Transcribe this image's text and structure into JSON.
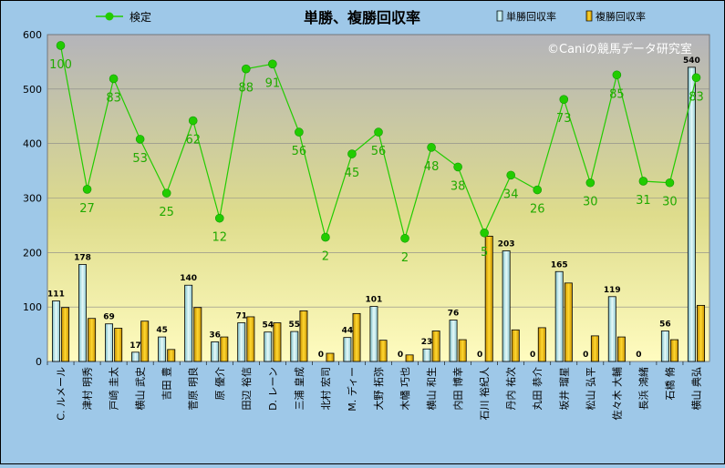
{
  "chart_data": {
    "type": "bar",
    "title": "単勝、複勝回収率",
    "watermark": "©Caniの競馬データ研究室",
    "ylim": [
      0,
      600
    ],
    "yticks": [
      0,
      100,
      200,
      300,
      400,
      500,
      600
    ],
    "grid": true,
    "legend_placement": "top",
    "categories": [
      "C. ルメール",
      "津村 明秀",
      "戸崎 圭太",
      "横山 武史",
      "吉田 豊",
      "菅原 明良",
      "原 優介",
      "田辺 裕信",
      "D. レーン",
      "三浦 皇成",
      "北村 宏司",
      "M. ディー",
      "大野 拓弥",
      "木幡 巧也",
      "横山 和生",
      "内田 博幸",
      "石川 裕紀人",
      "丹内 祐次",
      "丸田 恭介",
      "坂井 瑠星",
      "松山 弘平",
      "佐々木 大輔",
      "長浜 鴻緒",
      "石橋 脩",
      "横山 典弘"
    ],
    "series": [
      {
        "name": "単勝回収率",
        "type": "bar",
        "color": "#c8ecec",
        "values": [
          111,
          178,
          69,
          17,
          45,
          140,
          36,
          71,
          54,
          55,
          0,
          44,
          101,
          0,
          23,
          76,
          0,
          203,
          0,
          165,
          0,
          119,
          0,
          56,
          540
        ]
      },
      {
        "name": "複勝回収率",
        "type": "bar",
        "color": "#f0c000",
        "values": [
          99,
          79,
          61,
          74,
          22,
          99,
          45,
          82,
          71,
          93,
          15,
          88,
          39,
          12,
          56,
          40,
          230,
          58,
          62,
          144,
          47,
          45,
          0,
          40,
          103
        ]
      },
      {
        "name": "検定",
        "type": "line",
        "color": "#22cc00",
        "plot_values": [
          580,
          316,
          519,
          408,
          309,
          442,
          263,
          537,
          546,
          421,
          228,
          381,
          421,
          226,
          393,
          357,
          236,
          342,
          315,
          481,
          328,
          526,
          331,
          328,
          521
        ],
        "labels": [
          100,
          27,
          83,
          53,
          25,
          62,
          12,
          88,
          91,
          56,
          2,
          45,
          56,
          2,
          48,
          38,
          5,
          34,
          26,
          73,
          30,
          85,
          31,
          30,
          83
        ]
      }
    ],
    "bar_labels": [
      "111",
      "178",
      "69",
      "17",
      "45",
      "140",
      "36",
      "71",
      "54",
      "55",
      "0",
      "44",
      "101",
      "0",
      "23",
      "76",
      "0",
      "203",
      "0",
      "165",
      "0",
      "119",
      "0",
      "56",
      "540"
    ]
  }
}
